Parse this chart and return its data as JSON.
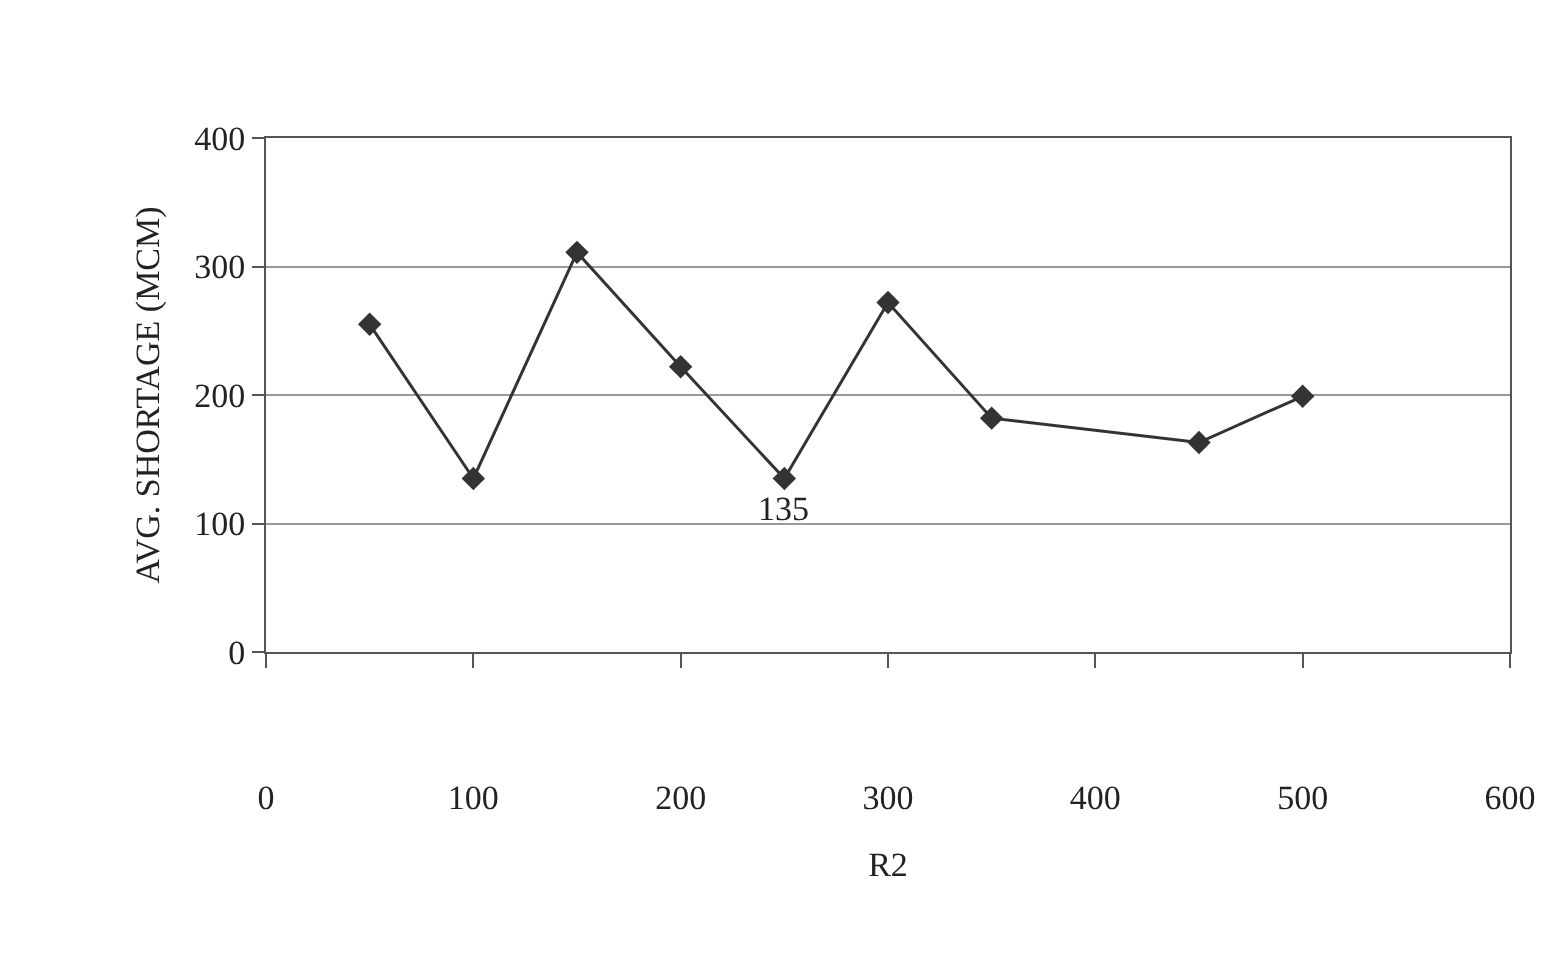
{
  "chart_data": {
    "type": "line",
    "xlabel": "R2",
    "ylabel": "AVG. SHORTAGE (MCM)",
    "x": [
      50,
      100,
      150,
      200,
      250,
      300,
      350,
      450,
      500
    ],
    "series": [
      {
        "color": "#333333",
        "values": [
          255,
          135,
          311,
          222,
          135,
          272,
          182,
          163,
          199
        ]
      }
    ],
    "xlim": [
      0,
      600
    ],
    "xticks": [
      0,
      100,
      200,
      300,
      400,
      500,
      600
    ],
    "ylim": [
      0,
      400
    ],
    "yticks": [
      0,
      100,
      200,
      300,
      400
    ],
    "grid": "y",
    "legend": false,
    "marker": "diamond",
    "line_style": "solid",
    "annotations": [
      {
        "text": "135",
        "x": 250,
        "y": 135
      }
    ]
  }
}
